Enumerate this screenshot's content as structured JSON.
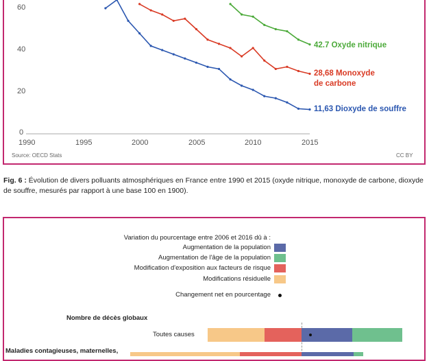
{
  "chart_data": {
    "type": "line",
    "x": [
      1990,
      1991,
      1992,
      1993,
      1994,
      1995,
      1996,
      1997,
      1998,
      1999,
      2000,
      2001,
      2002,
      2003,
      2004,
      2005,
      2006,
      2007,
      2008,
      2009,
      2010,
      2011,
      2012,
      2013,
      2014,
      2015
    ],
    "series": [
      {
        "name": "Oxyde nitrique",
        "color": "#4caa3a",
        "end_label": "42.7 Oxyde nitrique",
        "values": [
          null,
          null,
          null,
          null,
          null,
          null,
          null,
          null,
          null,
          null,
          null,
          null,
          null,
          null,
          null,
          null,
          null,
          null,
          62,
          57,
          56,
          52,
          50,
          49,
          45,
          42.7
        ]
      },
      {
        "name": "Monoxyde de carbone",
        "color": "#d93a24",
        "end_label_1": "28,68 Monoxyde",
        "end_label_2": "de carbone",
        "values": [
          null,
          null,
          null,
          null,
          null,
          null,
          null,
          null,
          null,
          null,
          62,
          59,
          57,
          54,
          55,
          50,
          45,
          43,
          41,
          37,
          41,
          35,
          31,
          32,
          30,
          28.68
        ]
      },
      {
        "name": "Dioxyde de souffre",
        "color": "#2b57b0",
        "end_label": "11,63 Dioxyde de souffre",
        "values": [
          null,
          null,
          null,
          null,
          null,
          null,
          null,
          60,
          64,
          54,
          48,
          42,
          40,
          38,
          36,
          34,
          32,
          31,
          26,
          23,
          21,
          18,
          17,
          15,
          12,
          11.63
        ]
      }
    ],
    "x_ticks": [
      "1990",
      "1995",
      "2000",
      "2005",
      "2010",
      "2015"
    ],
    "y_ticks": [
      "0",
      "20",
      "40",
      "60"
    ],
    "xlim": [
      1990,
      2015
    ],
    "ylim": [
      0,
      70
    ]
  },
  "source_text": "Source: OECD Stats",
  "license_text": "CC BY",
  "caption": {
    "label": "Fig. 6 :",
    "text": " Évolution de divers polluants atmosphériques en France entre 1990 et 2015 (oxyde nitrique, monoxyde de carbone, dioxyde de souffre, mesurés par rapport à une base 100 en 1900)."
  },
  "figure2": {
    "legend_title": "Variation du pourcentage entre 2006 et 2016 dû à :",
    "legend": [
      {
        "label": "Augmentation de la population",
        "color": "#5b6aa8"
      },
      {
        "label": "Augmentation de l'âge de la population",
        "color": "#6fc08e"
      },
      {
        "label": "Modification d'exposition aux facteurs de risque",
        "color": "#e4625c"
      },
      {
        "label": "Modifications résiduelle",
        "color": "#f7c888"
      }
    ],
    "net_label": "Changement net en pourcentage",
    "section_title": "Nombre de décès globaux",
    "rows": [
      {
        "label": "Toutes causes"
      },
      {
        "label": "Maladies contagieuses, maternelles,"
      }
    ]
  }
}
